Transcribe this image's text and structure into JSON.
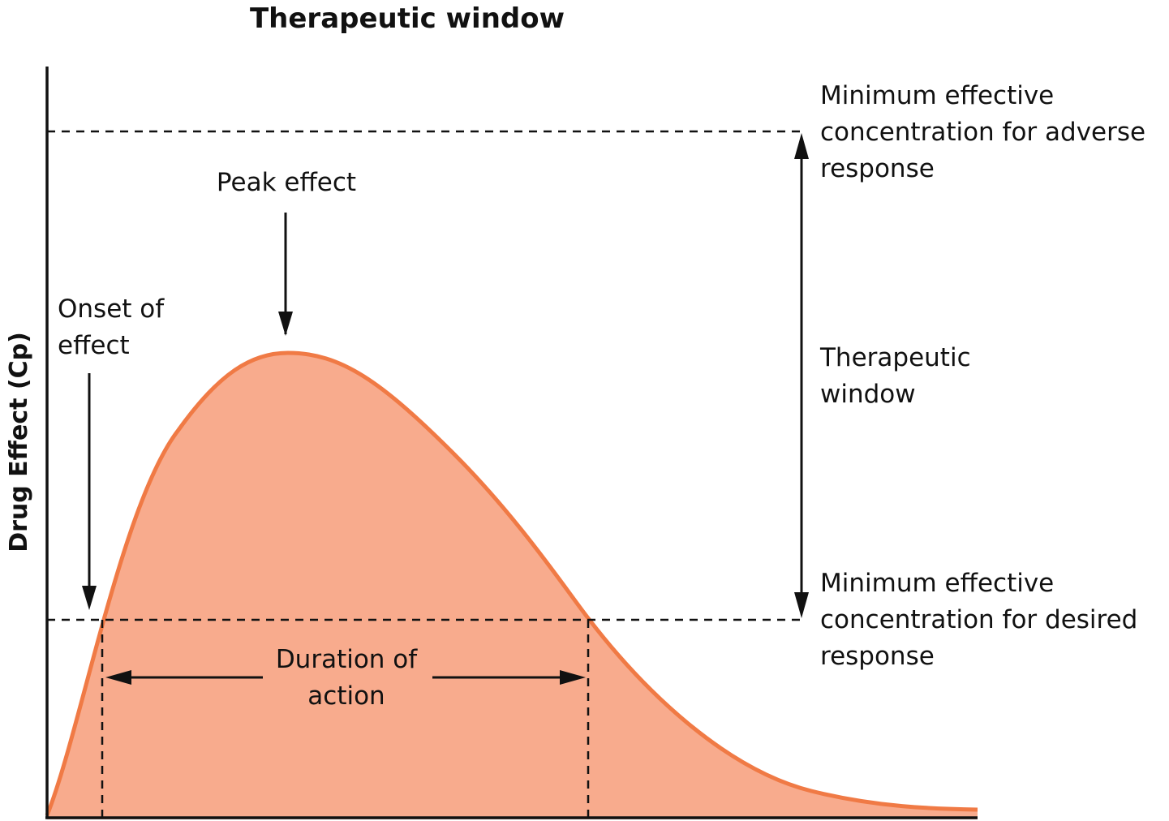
{
  "title": "Therapeutic window",
  "y_axis_label": "Drug Effect (Cp)",
  "labels": {
    "peak_effect": "Peak effect",
    "onset_of_effect": [
      "Onset of",
      "effect"
    ],
    "duration_of_action": [
      "Duration of",
      "action"
    ],
    "therapeutic_window": [
      "Therapeutic",
      "window"
    ],
    "mec_adverse": [
      "Minimum effective",
      "concentration for adverse",
      "response"
    ],
    "mec_desired": [
      "Minimum effective",
      "concentration for desired",
      "response"
    ]
  },
  "colors": {
    "curve_stroke": "#f07a45",
    "curve_fill": "#f8ab8d",
    "ink": "#111111"
  }
}
